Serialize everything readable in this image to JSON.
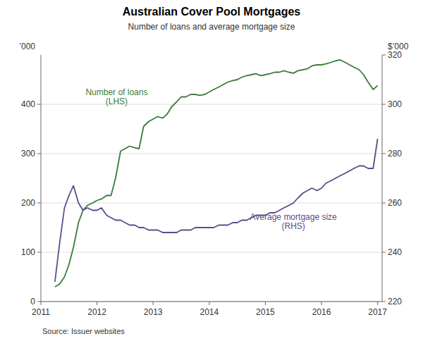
{
  "chart_data": {
    "type": "line",
    "title": "Australian Cover Pool Mortgages",
    "subtitle": "Number of loans and average mortgage size",
    "ylabel": "’000",
    "y2label": "$’000",
    "source": "Source:   Issuer websites",
    "grid": true,
    "x": [
      2011.25,
      2011.33,
      2011.42,
      2011.5,
      2011.58,
      2011.67,
      2011.75,
      2011.83,
      2011.92,
      2012.0,
      2012.08,
      2012.17,
      2012.25,
      2012.33,
      2012.42,
      2012.5,
      2012.58,
      2012.67,
      2012.75,
      2012.83,
      2012.92,
      2013.0,
      2013.08,
      2013.17,
      2013.25,
      2013.33,
      2013.42,
      2013.5,
      2013.58,
      2013.67,
      2013.75,
      2013.83,
      2013.92,
      2014.0,
      2014.08,
      2014.17,
      2014.25,
      2014.33,
      2014.42,
      2014.5,
      2014.58,
      2014.67,
      2014.75,
      2014.83,
      2014.92,
      2015.0,
      2015.08,
      2015.17,
      2015.25,
      2015.33,
      2015.42,
      2015.5,
      2015.58,
      2015.67,
      2015.75,
      2015.83,
      2015.92,
      2016.0,
      2016.08,
      2016.17,
      2016.25,
      2016.33,
      2016.42,
      2016.5,
      2016.58,
      2016.67,
      2016.75,
      2016.83,
      2016.92,
      2017.0
    ],
    "series": [
      {
        "name": "Number of loans\n(LHS)",
        "color": "#3a7d3a",
        "values": [
          30,
          35,
          50,
          75,
          110,
          160,
          185,
          195,
          200,
          205,
          208,
          215,
          215,
          250,
          305,
          310,
          315,
          312,
          310,
          355,
          365,
          370,
          375,
          372,
          380,
          395,
          405,
          415,
          415,
          420,
          420,
          418,
          420,
          425,
          430,
          435,
          440,
          445,
          448,
          450,
          455,
          458,
          460,
          462,
          458,
          460,
          462,
          465,
          465,
          468,
          465,
          463,
          468,
          470,
          472,
          478,
          480,
          480,
          482,
          485,
          488,
          490,
          485,
          480,
          475,
          470,
          460,
          445,
          430,
          438
        ]
      },
      {
        "name": "Average mortgage size\n(RHS)",
        "color": "#5b4c8a",
        "axis": "y2",
        "values": [
          228,
          243,
          258,
          263,
          267,
          260,
          257,
          258,
          257,
          257,
          258,
          255,
          254,
          253,
          253,
          252,
          251,
          251,
          250,
          250,
          249,
          249,
          249,
          248,
          248,
          248,
          248,
          249,
          249,
          249,
          250,
          250,
          250,
          250,
          250,
          251,
          251,
          251,
          252,
          252,
          253,
          253,
          254,
          255,
          255,
          255,
          256,
          256,
          257,
          258,
          259,
          260,
          262,
          264,
          265,
          266,
          265,
          266,
          268,
          269,
          270,
          271,
          272,
          273,
          274,
          275,
          275,
          274,
          274,
          286
        ]
      }
    ],
    "xlim": [
      2011,
      2017.08
    ],
    "xticks": [
      2011,
      2012,
      2013,
      2014,
      2015,
      2016,
      2017
    ],
    "ylim": [
      0,
      500
    ],
    "yticks": [
      0,
      100,
      200,
      300,
      400
    ],
    "y2lim": [
      220,
      320
    ],
    "y2ticks": [
      220,
      240,
      260,
      280,
      300,
      320
    ]
  }
}
